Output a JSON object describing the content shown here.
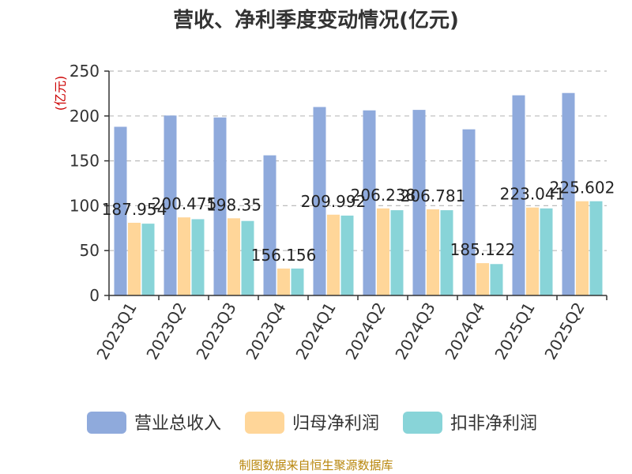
{
  "chart_data": {
    "type": "bar",
    "title": "营收、净利季度变动情况(亿元)",
    "ylabel": "(亿元)",
    "ylim": [
      0,
      250
    ],
    "yticks": [
      0,
      50,
      100,
      150,
      200,
      250
    ],
    "grid": true,
    "legend_position": "bottom",
    "categories": [
      "2023Q1",
      "2023Q2",
      "2023Q3",
      "2023Q4",
      "2024Q1",
      "2024Q2",
      "2024Q3",
      "2024Q4",
      "2025Q1",
      "2025Q2"
    ],
    "series": [
      {
        "name": "营业总收入",
        "color": "#8faadc",
        "values": [
          187.954,
          200.475,
          198.35,
          156.156,
          209.992,
          206.238,
          206.781,
          185.122,
          223.041,
          225.602
        ],
        "labels": [
          "187.954",
          "200.475",
          "198.35",
          "156.156",
          "209.992",
          "206.238",
          "206.781",
          "185.122",
          "223.041",
          "225.602"
        ]
      },
      {
        "name": "归母净利润",
        "color": "#ffd699",
        "values": [
          81,
          87,
          86,
          30,
          90,
          97,
          96,
          36,
          98,
          105
        ]
      },
      {
        "name": "扣非净利润",
        "color": "#88d4d8",
        "values": [
          80,
          85,
          83,
          30,
          89,
          95,
          95,
          35,
          97,
          105
        ]
      }
    ],
    "source": "制图数据来自恒生聚源数据库"
  }
}
